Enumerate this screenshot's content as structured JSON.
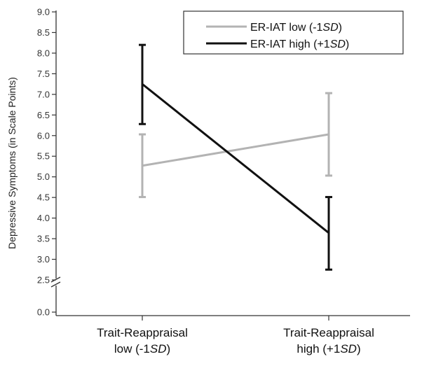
{
  "chart_data": {
    "type": "line",
    "ylabel": "Depressive Symptoms (in Scale Points)",
    "xlabel": "",
    "categories": [
      {
        "line1": "Trait-Reappraisal",
        "line2_pre": "low (-1",
        "line2_em": "SD",
        "line2_post": ")"
      },
      {
        "line1": "Trait-Reappraisal",
        "line2_pre": "high (+1",
        "line2_em": "SD",
        "line2_post": ")"
      }
    ],
    "yticks_upper": [
      "2.5",
      "3.0",
      "3.5",
      "4.0",
      "4.5",
      "5.0",
      "5.5",
      "6.0",
      "6.5",
      "7.0",
      "7.5",
      "8.0",
      "8.5",
      "9.0"
    ],
    "ytick_values_upper": [
      2.5,
      3.0,
      3.5,
      4.0,
      4.5,
      5.0,
      5.5,
      6.0,
      6.5,
      7.0,
      7.5,
      8.0,
      8.5,
      9.0
    ],
    "yticks_lower": [
      "0.0"
    ],
    "ytick_values_lower": [
      0.0
    ],
    "axis_break": true,
    "ylim_upper": [
      2.5,
      9.0
    ],
    "legend_placement": "top-right",
    "series": [
      {
        "name_pre": "ER-IAT low (-1",
        "name_em": "SD",
        "name_post": ")",
        "color": "#b3b3b3",
        "values": [
          5.27,
          6.03
        ],
        "err_low": [
          4.51,
          5.03
        ],
        "err_high": [
          6.03,
          7.03
        ]
      },
      {
        "name_pre": "ER-IAT high (+1",
        "name_em": "SD",
        "name_post": ")",
        "color": "#111111",
        "values": [
          7.25,
          3.64
        ],
        "err_low": [
          6.28,
          2.75
        ],
        "err_high": [
          8.2,
          4.51
        ]
      }
    ]
  }
}
